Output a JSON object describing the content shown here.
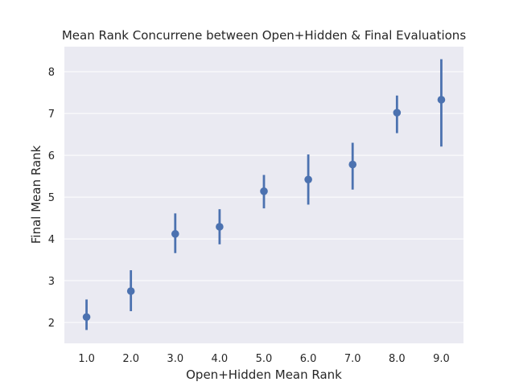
{
  "chart_data": {
    "type": "scatter",
    "style": "point plot with error bars",
    "title": "Mean Rank Concurrene between Open+Hidden & Final Evaluations",
    "xlabel": "Open+Hidden Mean Rank",
    "ylabel": "Final Mean Rank",
    "categories": [
      "1.0",
      "2.0",
      "3.0",
      "4.0",
      "5.0",
      "6.0",
      "7.0",
      "8.0",
      "9.0"
    ],
    "yticks": [
      "2",
      "3",
      "4",
      "5",
      "6",
      "7",
      "8"
    ],
    "ylim": [
      1.5,
      8.6
    ],
    "grid": true,
    "background": "#eaeaf2",
    "grid_color": "#ffffff",
    "series": [
      {
        "color": "#4c72b0",
        "values": [
          2.13,
          2.75,
          4.12,
          4.29,
          5.14,
          5.42,
          5.78,
          7.02,
          7.33
        ],
        "error_low": [
          1.82,
          2.27,
          3.66,
          3.87,
          4.73,
          4.82,
          5.18,
          6.53,
          6.21
        ],
        "error_high": [
          2.55,
          3.25,
          4.61,
          4.71,
          5.53,
          6.02,
          6.3,
          7.43,
          8.3
        ]
      }
    ]
  }
}
